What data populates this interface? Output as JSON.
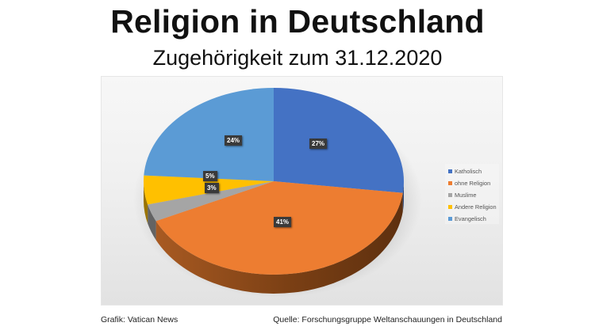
{
  "header": {
    "title": "Religion in Deutschland",
    "subtitle": "Zugehörigkeit zum 31.12.2020"
  },
  "legend": {
    "items": [
      {
        "label": "Katholisch",
        "color": "#4472c4"
      },
      {
        "label": "ohne Religion",
        "color": "#ed7d31"
      },
      {
        "label": "Muslime",
        "color": "#a5a5a5"
      },
      {
        "label": "Andere Religion",
        "color": "#ffc000"
      },
      {
        "label": "Evangelisch",
        "color": "#5b9bd5"
      }
    ]
  },
  "labels": {
    "katholisch": "27%",
    "ohne_religion": "41%",
    "muslime": "3%",
    "andere_religion": "5%",
    "evangelisch": "24%"
  },
  "footer": {
    "left": "Grafik: Vatican News",
    "right": "Quelle: Forschungsgruppe Weltanschauungen in Deutschland"
  },
  "chart_data": {
    "type": "pie",
    "title": "Religion in Deutschland",
    "subtitle": "Zugehörigkeit zum 31.12.2020",
    "categories": [
      "Katholisch",
      "ohne Religion",
      "Muslime",
      "Andere Religion",
      "Evangelisch"
    ],
    "values": [
      27,
      41,
      3,
      5,
      24
    ],
    "unit": "%",
    "colors": [
      "#4472c4",
      "#ed7d31",
      "#a5a5a5",
      "#ffc000",
      "#5b9bd5"
    ],
    "style": "3d",
    "start_angle": "12 o'clock, clockwise",
    "legend_position": "right",
    "data_labels": [
      "27%",
      "41%",
      "3%",
      "5%",
      "24%"
    ],
    "source": "Forschungsgruppe Weltanschauungen in Deutschland",
    "credit": "Grafik: Vatican News"
  }
}
